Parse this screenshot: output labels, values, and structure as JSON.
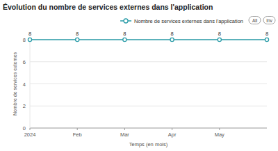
{
  "chart_data": {
    "type": "line",
    "title": "Évolution du nombre de services externes dans l'application",
    "x_label": "Temps (en mois)",
    "y_label": "Nombre de services externes",
    "categories": [
      "2024",
      "Feb",
      "Mar",
      "Apr",
      "May",
      null
    ],
    "series": [
      {
        "name": "Nombre de services externes dans l'application",
        "color": "#2a9ca8",
        "marker": "circle",
        "values": [
          8,
          8,
          8,
          8,
          8,
          8
        ]
      }
    ],
    "ylim": [
      0,
      8
    ],
    "yticks": [
      0,
      2,
      4,
      6,
      8
    ],
    "grid": true,
    "legend": "top-right",
    "data_labels": true,
    "buttons": [
      "All",
      "Inv"
    ]
  }
}
